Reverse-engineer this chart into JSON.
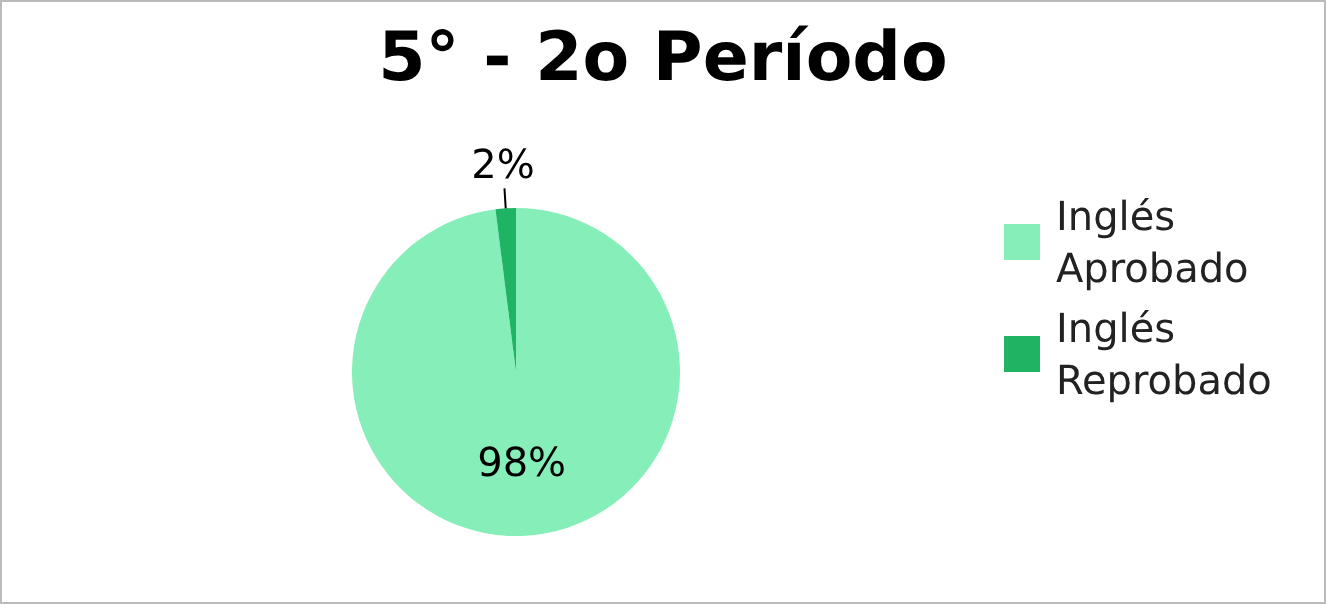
{
  "chart_data": {
    "type": "pie",
    "title": "5° - 2o Período",
    "categories": [
      "Inglés Aprobado",
      "Inglés Reprobado"
    ],
    "values": [
      98,
      2
    ],
    "colors": [
      "#86efb9",
      "#1fb463"
    ],
    "value_labels": [
      "98%",
      "2%"
    ],
    "legend": "right"
  }
}
